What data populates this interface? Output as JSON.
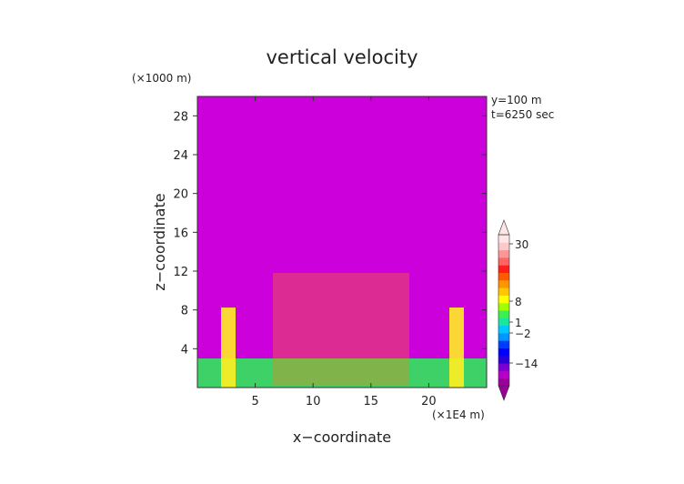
{
  "chart_data": {
    "type": "heatmap",
    "title": "vertical velocity",
    "xlabel": "x−coordinate",
    "ylabel": "z−coordinate",
    "x_unit": "(×1E4 m)",
    "y_unit": "(×1000 m)",
    "annotations": [
      "y=100 m",
      "t=6250 sec"
    ],
    "xlim": [
      0,
      25
    ],
    "ylim": [
      0,
      30
    ],
    "x_ticks": [
      5,
      10,
      15,
      20
    ],
    "y_ticks": [
      4,
      8,
      12,
      16,
      20,
      24,
      28
    ],
    "colorbar": {
      "label_values": [
        30,
        8,
        1,
        -2,
        -14
      ],
      "labels": [
        "30",
        "8",
        "1",
        "−2",
        "−14"
      ],
      "colors": [
        "#9b009b",
        "#b400c8",
        "#7a00d2",
        "#2a00d8",
        "#0000ff",
        "#003cff",
        "#0096ff",
        "#00c8ff",
        "#19e6a0",
        "#3cf050",
        "#a0ff00",
        "#ffff00",
        "#ffc800",
        "#ff9600",
        "#ff5a00",
        "#ff1e1e",
        "#ff6464",
        "#ff9696",
        "#ffc8c8",
        "#ffe6e6"
      ]
    },
    "field_description": "vertical velocity field over x 0-25 (×1E4 m) and z 0-30 (×1000 m)"
  }
}
